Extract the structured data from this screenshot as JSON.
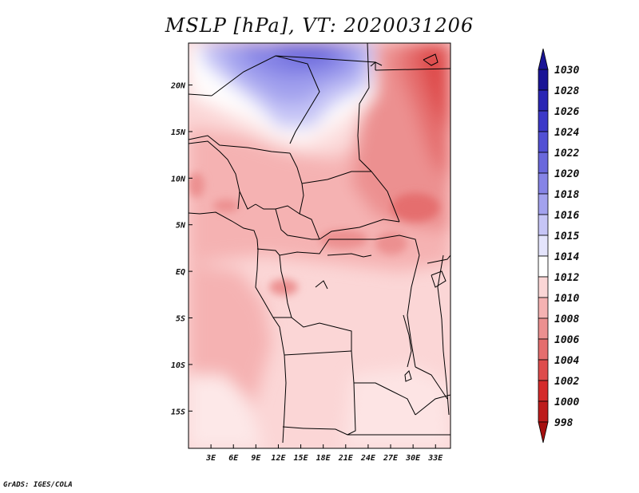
{
  "title": "MSLP [hPa], VT: 2020031206",
  "credit": "GrADS: IGES/COLA",
  "map": {
    "lon_range": [
      0,
      35
    ],
    "lat_range": [
      -19,
      24.5
    ],
    "lon_ticks": [
      "3E",
      "6E",
      "9E",
      "12E",
      "15E",
      "18E",
      "21E",
      "24E",
      "27E",
      "30E",
      "33E"
    ],
    "lon_tick_values": [
      3,
      6,
      9,
      12,
      15,
      18,
      21,
      24,
      27,
      30,
      33
    ],
    "lat_ticks": [
      "20N",
      "15N",
      "10N",
      "5N",
      "EQ",
      "5S",
      "10S",
      "15S"
    ],
    "lat_tick_values": [
      20,
      15,
      10,
      5,
      0,
      -5,
      -10,
      -15
    ]
  },
  "colorbar": {
    "labels": [
      "1030",
      "1028",
      "1026",
      "1024",
      "1022",
      "1020",
      "1018",
      "1016",
      "1015",
      "1014",
      "1012",
      "1010",
      "1008",
      "1006",
      "1004",
      "1002",
      "1000",
      "998"
    ],
    "colors": [
      "#1a1496",
      "#2a26b4",
      "#3c38c8",
      "#5250d4",
      "#6a68dc",
      "#8684e6",
      "#a3a2ee",
      "#c6c5f6",
      "#e4e4fc",
      "#ffffff",
      "#fbd6d6",
      "#f5b2b2",
      "#ec9090",
      "#e56e6e",
      "#de4c4c",
      "#d42a2a",
      "#bd1c1c",
      "#a50f0f"
    ]
  }
}
